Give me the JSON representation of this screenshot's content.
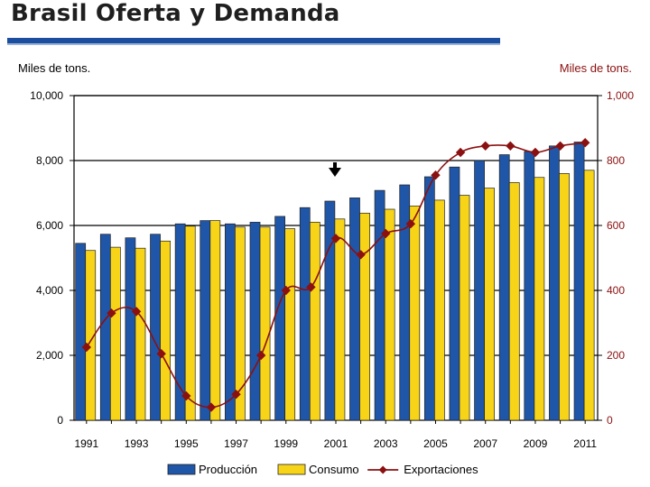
{
  "page": {
    "title": "Brasil Oferta y Demanda"
  },
  "chart_data": {
    "type": "bar",
    "left_unit_label": "Miles de tons.",
    "right_unit_label": "Miles de tons.",
    "categories": [
      "1991",
      "1992",
      "1993",
      "1994",
      "1995",
      "1996",
      "1997",
      "1998",
      "1999",
      "2000",
      "2001",
      "2002",
      "2003",
      "2004",
      "2005",
      "2006",
      "2007",
      "2008",
      "2009",
      "2010",
      "2011"
    ],
    "x_tick_labels": [
      "1991",
      "1993",
      "1995",
      "1997",
      "1999",
      "2001",
      "2003",
      "2005",
      "2007",
      "2009",
      "2011"
    ],
    "left_axis": {
      "ylim": [
        0,
        10000
      ],
      "ticks": [
        "0",
        "2,000",
        "4,000",
        "6,000",
        "8,000",
        "10,000"
      ],
      "tick_values": [
        0,
        2000,
        4000,
        6000,
        8000,
        10000
      ]
    },
    "right_axis": {
      "ylim": [
        0,
        1000
      ],
      "ticks": [
        "0",
        "200",
        "400",
        "600",
        "800",
        "1,000"
      ],
      "tick_values": [
        0,
        200,
        400,
        600,
        800,
        1000
      ]
    },
    "grid": "horizontal",
    "legend_position": "bottom",
    "series": [
      {
        "name": "Producción",
        "kind": "bar",
        "axis": "left",
        "color": "#1f56a8",
        "values": [
          5450,
          5730,
          5620,
          5730,
          6050,
          6150,
          6050,
          6100,
          6280,
          6550,
          6750,
          6850,
          7080,
          7250,
          7500,
          7800,
          8000,
          8180,
          8280,
          8450,
          8570
        ]
      },
      {
        "name": "Consumo",
        "kind": "bar",
        "axis": "left",
        "color": "#f7d417",
        "values": [
          5230,
          5330,
          5300,
          5520,
          5980,
          6150,
          5950,
          5950,
          5900,
          6100,
          6200,
          6380,
          6500,
          6600,
          6780,
          6930,
          7150,
          7320,
          7480,
          7600,
          7700
        ]
      },
      {
        "name": "Exportaciones",
        "kind": "line",
        "axis": "right",
        "color": "#8b1010",
        "values": [
          225,
          330,
          335,
          205,
          75,
          40,
          80,
          200,
          400,
          410,
          560,
          510,
          575,
          605,
          755,
          825,
          845,
          845,
          825,
          845,
          855
        ]
      }
    ],
    "annotations": [
      {
        "type": "arrow-down",
        "category": "2001",
        "value": 8000,
        "color": "#000000"
      }
    ]
  }
}
